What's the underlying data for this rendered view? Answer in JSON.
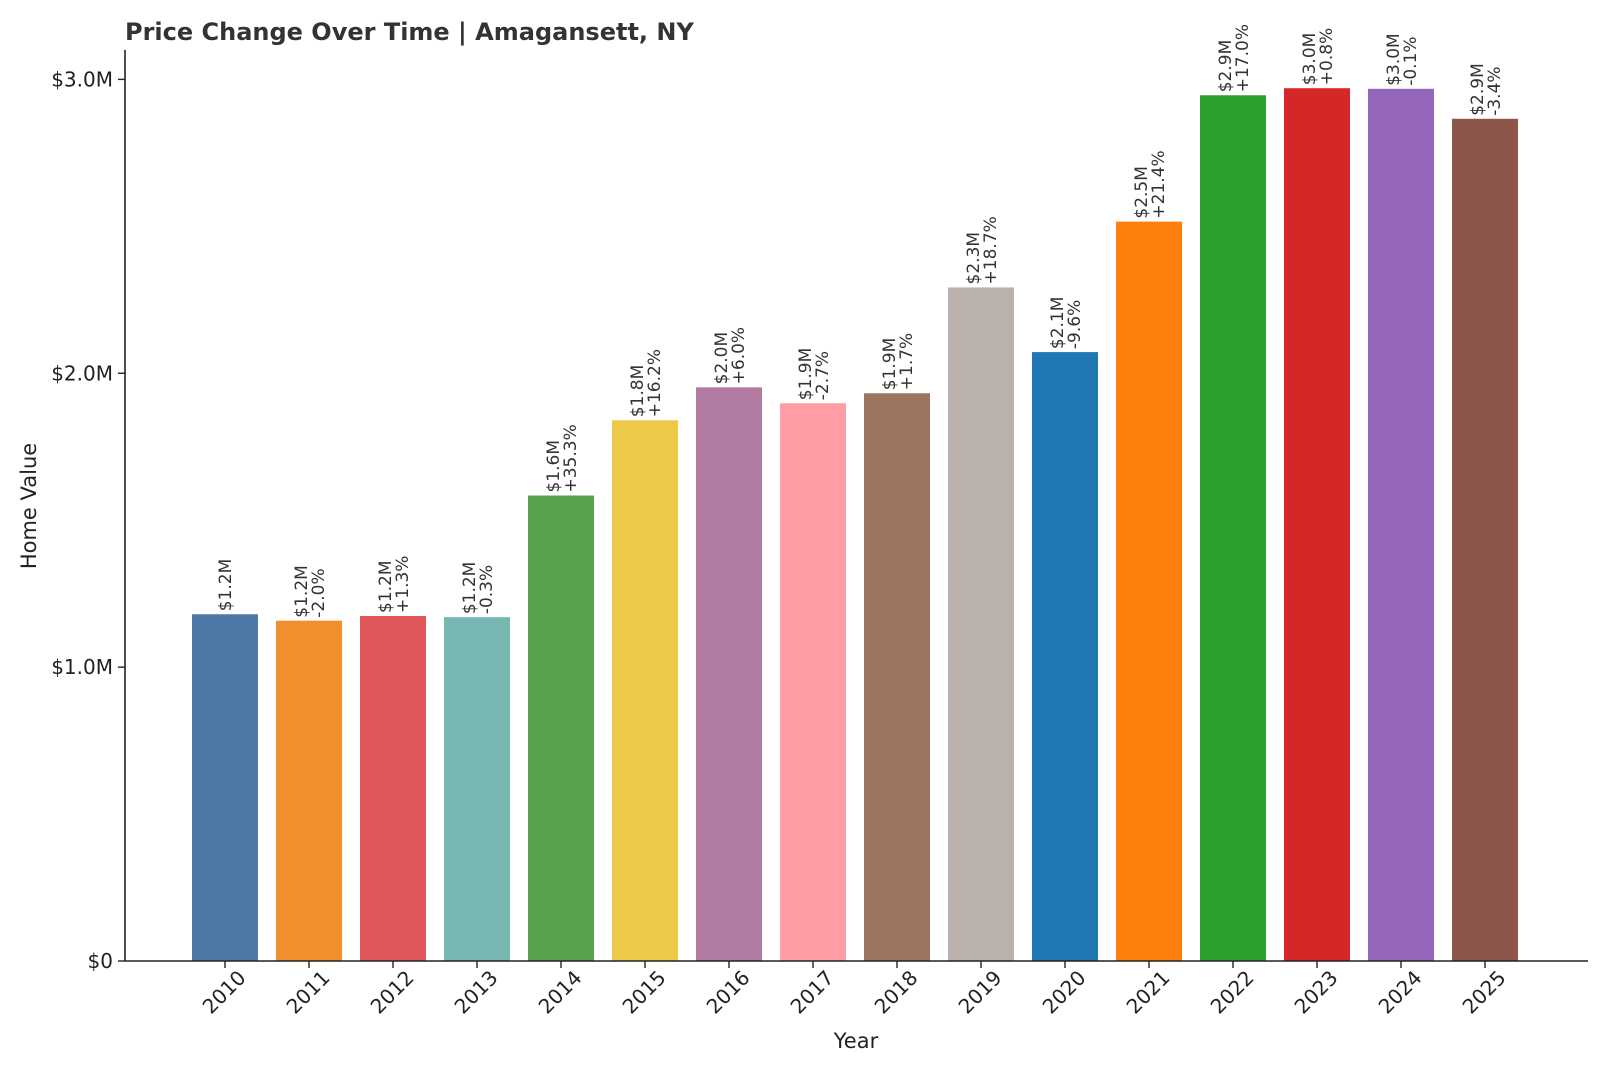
{
  "chart_data": {
    "type": "bar",
    "title": "Price Change Over Time | Amagansett, NY",
    "xlabel": "Year",
    "ylabel": "Home Value",
    "ylim": [
      0,
      3100000
    ],
    "yticks": [
      {
        "value": 0,
        "label": "$0"
      },
      {
        "value": 1000000,
        "label": "$1.0M"
      },
      {
        "value": 2000000,
        "label": "$2.0M"
      },
      {
        "value": 3000000,
        "label": "$3.0M"
      }
    ],
    "categories": [
      "2010",
      "2011",
      "2012",
      "2013",
      "2014",
      "2015",
      "2016",
      "2017",
      "2018",
      "2019",
      "2020",
      "2021",
      "2022",
      "2023",
      "2024",
      "2025"
    ],
    "values": [
      1180000,
      1158000,
      1174000,
      1170000,
      1584000,
      1840000,
      1952000,
      1898000,
      1932000,
      2292000,
      2072000,
      2516000,
      2946000,
      2970000,
      2968000,
      2866000
    ],
    "value_labels": [
      "$1.2M",
      "$1.2M",
      "$1.2M",
      "$1.2M",
      "$1.6M",
      "$1.8M",
      "$2.0M",
      "$1.9M",
      "$1.9M",
      "$2.3M",
      "$2.1M",
      "$2.5M",
      "$2.9M",
      "$3.0M",
      "$3.0M",
      "$2.9M"
    ],
    "change_labels": [
      "",
      "-2.0%",
      "+1.3%",
      "-0.3%",
      "+35.3%",
      "+16.2%",
      "+6.0%",
      "-2.7%",
      "+1.7%",
      "+18.7%",
      "-9.6%",
      "+21.4%",
      "+17.0%",
      "+0.8%",
      "-0.1%",
      "-3.4%"
    ],
    "colors": [
      "#4e79a7",
      "#f28e2b",
      "#e15759",
      "#76b7b2",
      "#59a14f",
      "#edc948",
      "#b07aa1",
      "#ff9da7",
      "#9c755f",
      "#bab0ac",
      "#1f77b4",
      "#ff7f0e",
      "#2ca02c",
      "#d62728",
      "#9467bd",
      "#8c564b"
    ],
    "grid": false,
    "legend": "none"
  }
}
